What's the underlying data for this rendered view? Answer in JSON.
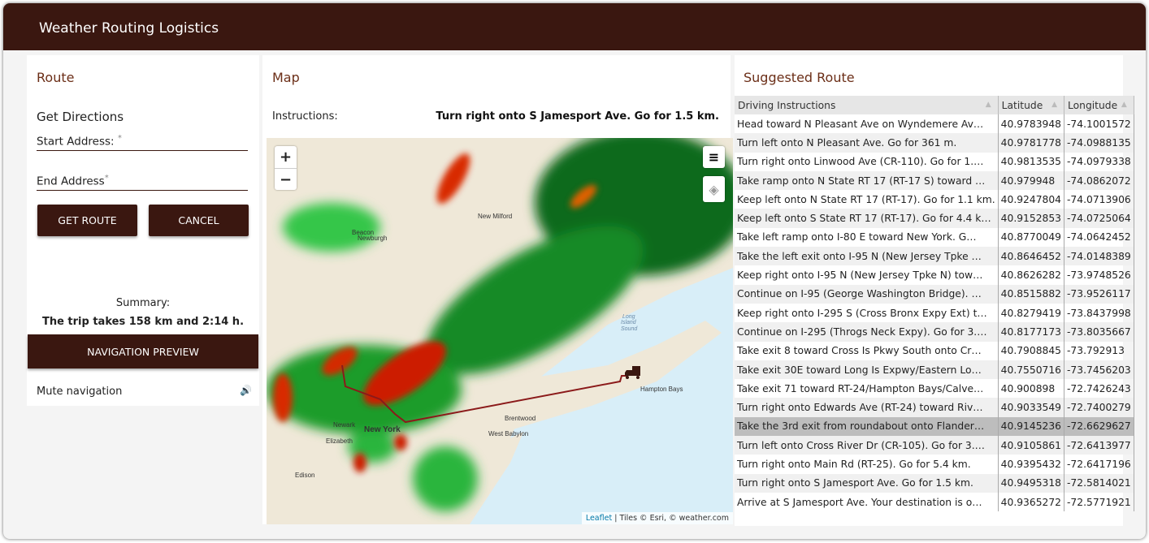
{
  "app": {
    "title": "Weather Routing Logistics"
  },
  "route_panel": {
    "title": "Route",
    "heading": "Get Directions",
    "start_label": "Start Address:",
    "end_label": "End Address",
    "required_mark": "*",
    "get_route": "GET ROUTE",
    "cancel": "CANCEL",
    "summary_label": "Summary:",
    "summary_text": "The trip takes 158 km and 2:14 h.",
    "nav_preview": "NAVIGATION PREVIEW",
    "mute_label": "Mute navigation",
    "mute_icon": "speaker-icon"
  },
  "map_panel": {
    "title": "Map",
    "instructions_label": "Instructions:",
    "instructions_value": "Turn right onto S Jamesport Ave. Go for 1.5 km.",
    "zoom_in": "+",
    "zoom_out": "−",
    "attribution_link": "Leaflet",
    "attribution_text": "| Tiles © Esri, © weather.com",
    "labels": [
      "New Milford",
      "Beacon",
      "Newburgh",
      "New York",
      "Newark",
      "Elizabeth",
      "Edison",
      "Brentwood",
      "West Babylon",
      "Hampton Bays",
      "Long",
      "Island",
      "Sound"
    ],
    "route_color": "#8b1a1a"
  },
  "suggested": {
    "title": "Suggested Route",
    "columns": [
      "Driving Instructions",
      "Latitude",
      "Longitude"
    ],
    "selected_row": 16,
    "rows": [
      [
        "Head toward N Pleasant Ave on Wyndemere Av…",
        "40.9783948",
        "-74.1001572"
      ],
      [
        "Turn left onto N Pleasant Ave. Go for 361 m.",
        "40.9781778",
        "-74.0988135"
      ],
      [
        "Turn right onto Linwood Ave (CR-110). Go for 1.…",
        "40.9813535",
        "-74.0979338"
      ],
      [
        "Take ramp onto N State RT 17 (RT-17 S) toward …",
        "40.979948",
        "-74.0862072"
      ],
      [
        "Keep left onto N State RT 17 (RT-17). Go for 1.1 km.",
        "40.9247804",
        "-74.0713906"
      ],
      [
        "Keep left onto S State RT 17 (RT-17). Go for 4.4 k…",
        "40.9152853",
        "-74.0725064"
      ],
      [
        "Take left ramp onto I-80 E toward New York. G…",
        "40.8770049",
        "-74.0642452"
      ],
      [
        "Take the left exit onto I-95 N (New Jersey Tpke …",
        "40.8646452",
        "-74.0148389"
      ],
      [
        "Keep right onto I-95 N (New Jersey Tpke N) tow…",
        "40.8626282",
        "-73.9748526"
      ],
      [
        "Continue on I-95 (George Washington Bridge). …",
        "40.8515882",
        "-73.9526117"
      ],
      [
        "Keep right onto I-295 S (Cross Bronx Expy Ext) t…",
        "40.8279419",
        "-73.8437998"
      ],
      [
        "Continue on I-295 (Throgs Neck Expy). Go for 3.…",
        "40.8177173",
        "-73.8035667"
      ],
      [
        "Take exit 8 toward Cross Is Pkwy South onto Cr…",
        "40.7908845",
        "-73.792913"
      ],
      [
        "Take exit 30E toward Long Is Expwy/Eastern Lo…",
        "40.7550716",
        "-73.7456203"
      ],
      [
        "Take exit 71 toward RT-24/Hampton Bays/Calve…",
        "40.900898",
        "-72.7426243"
      ],
      [
        "Turn right onto Edwards Ave (RT-24) toward Riv…",
        "40.9033549",
        "-72.7400279"
      ],
      [
        "Take the 3rd exit from roundabout onto Flander…",
        "40.9145236",
        "-72.6629627"
      ],
      [
        "Turn left onto Cross River Dr (CR-105). Go for 3.…",
        "40.9105861",
        "-72.6413977"
      ],
      [
        "Turn right onto Main Rd (RT-25). Go for 5.4 km.",
        "40.9395432",
        "-72.6417196"
      ],
      [
        "Turn right onto S Jamesport Ave. Go for 1.5 km.",
        "40.9495318",
        "-72.5814021"
      ],
      [
        "Arrive at S Jamesport Ave. Your destination is o…",
        "40.9365272",
        "-72.5771921"
      ]
    ]
  }
}
